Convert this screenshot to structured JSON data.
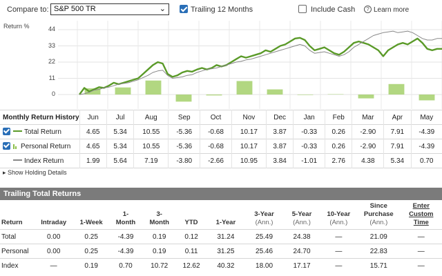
{
  "toolbar": {
    "compare_label": "Compare to:",
    "compare_value": "S&P 500 TR",
    "trailing_label": "Trailing 12 Months",
    "trailing_checked": true,
    "include_cash_label": "Include Cash",
    "include_cash_checked": false,
    "learn_more": "Learn more",
    "help_icon": "help-circle-icon"
  },
  "colors": {
    "portfolio_line": "#5a9a28",
    "index_line": "#888888",
    "bar_fill": "#a5d06b",
    "checkbox": "#2a6fb7",
    "section_header": "#7b7b7b"
  },
  "chart_data": {
    "type": "line",
    "y_title": "Return %",
    "y_ticks": [
      "44",
      "33",
      "22",
      "11",
      "0"
    ],
    "ylim": [
      -5,
      44
    ],
    "months": [
      "Jun",
      "Jul",
      "Aug",
      "Sep",
      "Oct",
      "Nov",
      "Dec",
      "Jan",
      "Feb",
      "Mar",
      "Apr",
      "May"
    ],
    "bars": [
      4.65,
      5.34,
      10.55,
      -5.36,
      -0.68,
      10.17,
      3.87,
      -0.33,
      0.26,
      -2.9,
      7.91,
      -4.39
    ],
    "series": [
      {
        "legend_label": "Total Return",
        "values": [
          0,
          4.5,
          2,
          3.5,
          5,
          4.5,
          6,
          8,
          7,
          8,
          9,
          10,
          11,
          14,
          17,
          20,
          22,
          21,
          14,
          12,
          13,
          15,
          16,
          15.5,
          17,
          18,
          17,
          18,
          20,
          19,
          20,
          22,
          24,
          26,
          25,
          26,
          27,
          28,
          30,
          29,
          31,
          33,
          34,
          36,
          38,
          38.5,
          37,
          33,
          30,
          31,
          32,
          30,
          28,
          27,
          29,
          32,
          35,
          36,
          35,
          34,
          32,
          30,
          26,
          30,
          32,
          34,
          35,
          34,
          36,
          38,
          35,
          31,
          30,
          31,
          31
        ]
      },
      {
        "legend_label": "Index Return",
        "values": [
          0,
          0.5,
          1.5,
          3,
          3.5,
          4.5,
          5,
          6,
          7,
          7.5,
          8,
          9,
          10,
          11.5,
          13,
          15,
          16,
          16.5,
          13,
          11,
          11.5,
          12,
          13,
          13.5,
          15,
          16,
          17,
          17.5,
          18,
          19,
          20,
          21,
          22,
          22.5,
          23.5,
          24,
          25,
          26,
          27,
          28,
          29,
          30,
          31,
          32,
          33,
          34,
          33,
          30,
          28,
          28.5,
          29,
          28,
          27,
          26,
          27,
          29,
          32,
          34,
          36,
          38,
          40,
          41,
          42,
          42.5,
          43,
          42,
          42.5,
          43,
          42,
          40,
          38,
          37,
          37,
          38,
          38
        ]
      }
    ]
  },
  "monthly": {
    "header": "Monthly Return History",
    "rows": [
      {
        "label": "Total Return",
        "checked": true,
        "values": [
          "4.65",
          "5.34",
          "10.55",
          "-5.36",
          "-0.68",
          "10.17",
          "3.87",
          "-0.33",
          "0.26",
          "-2.90",
          "7.91",
          "-4.39"
        ]
      },
      {
        "label": "Personal Return",
        "checked": true,
        "values": [
          "4.65",
          "5.34",
          "10.55",
          "-5.36",
          "-0.68",
          "10.17",
          "3.87",
          "-0.33",
          "0.26",
          "-2.90",
          "7.91",
          "-4.39"
        ]
      },
      {
        "label": "Index Return",
        "checked": false,
        "values": [
          "1.99",
          "5.64",
          "7.19",
          "-3.80",
          "-2.66",
          "10.95",
          "3.84",
          "-1.01",
          "2.76",
          "4.38",
          "5.34",
          "0.70"
        ]
      }
    ]
  },
  "show_details": "Show Holding Details",
  "trailing": {
    "title": "Trailing Total Returns",
    "headers": [
      {
        "l1": "",
        "l2": "Return"
      },
      {
        "l1": "",
        "l2": "Intraday"
      },
      {
        "l1": "",
        "l2": "1-Week"
      },
      {
        "l1": "1-",
        "l2": "Month"
      },
      {
        "l1": "3-",
        "l2": "Month"
      },
      {
        "l1": "",
        "l2": "YTD"
      },
      {
        "l1": "",
        "l2": "1-Year"
      },
      {
        "l1": "3-Year",
        "l2": "(Ann.)"
      },
      {
        "l1": "5-Year",
        "l2": "(Ann.)"
      },
      {
        "l1": "10-Year",
        "l2": "(Ann.)"
      },
      {
        "l1": "Since",
        "l1b": "Purchase",
        "l2": "(Ann.)"
      },
      {
        "l1": "Enter",
        "l1b": "Custom",
        "l2": "Time"
      }
    ],
    "rows": [
      [
        "Total",
        "0.00",
        "0.25",
        "-4.39",
        "0.19",
        "0.12",
        "31.24",
        "25.49",
        "24.38",
        "—",
        "21.09",
        "—"
      ],
      [
        "Personal",
        "0.00",
        "0.25",
        "-4.39",
        "0.19",
        "0.11",
        "31.25",
        "25.46",
        "24.70",
        "—",
        "22.83",
        "—"
      ],
      [
        "Index",
        "—",
        "0.19",
        "0.70",
        "10.72",
        "12.62",
        "40.32",
        "18.00",
        "17.17",
        "—",
        "15.71",
        "—"
      ]
    ]
  }
}
